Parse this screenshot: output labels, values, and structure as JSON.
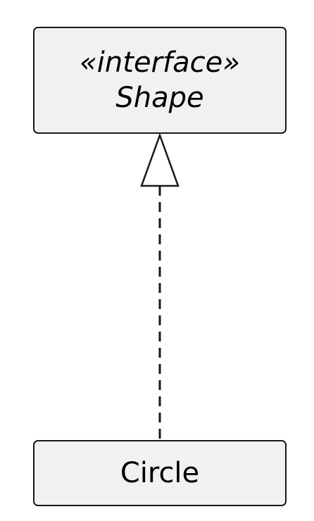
{
  "interface": {
    "stereotype": "«interface»",
    "name": "Shape"
  },
  "implementer": {
    "name": "Circle"
  },
  "relationship": {
    "type": "realization",
    "from": "Circle",
    "to": "Shape"
  },
  "colors": {
    "box_fill": "#f1f1f1",
    "stroke": "#181818",
    "text": "#000000"
  }
}
